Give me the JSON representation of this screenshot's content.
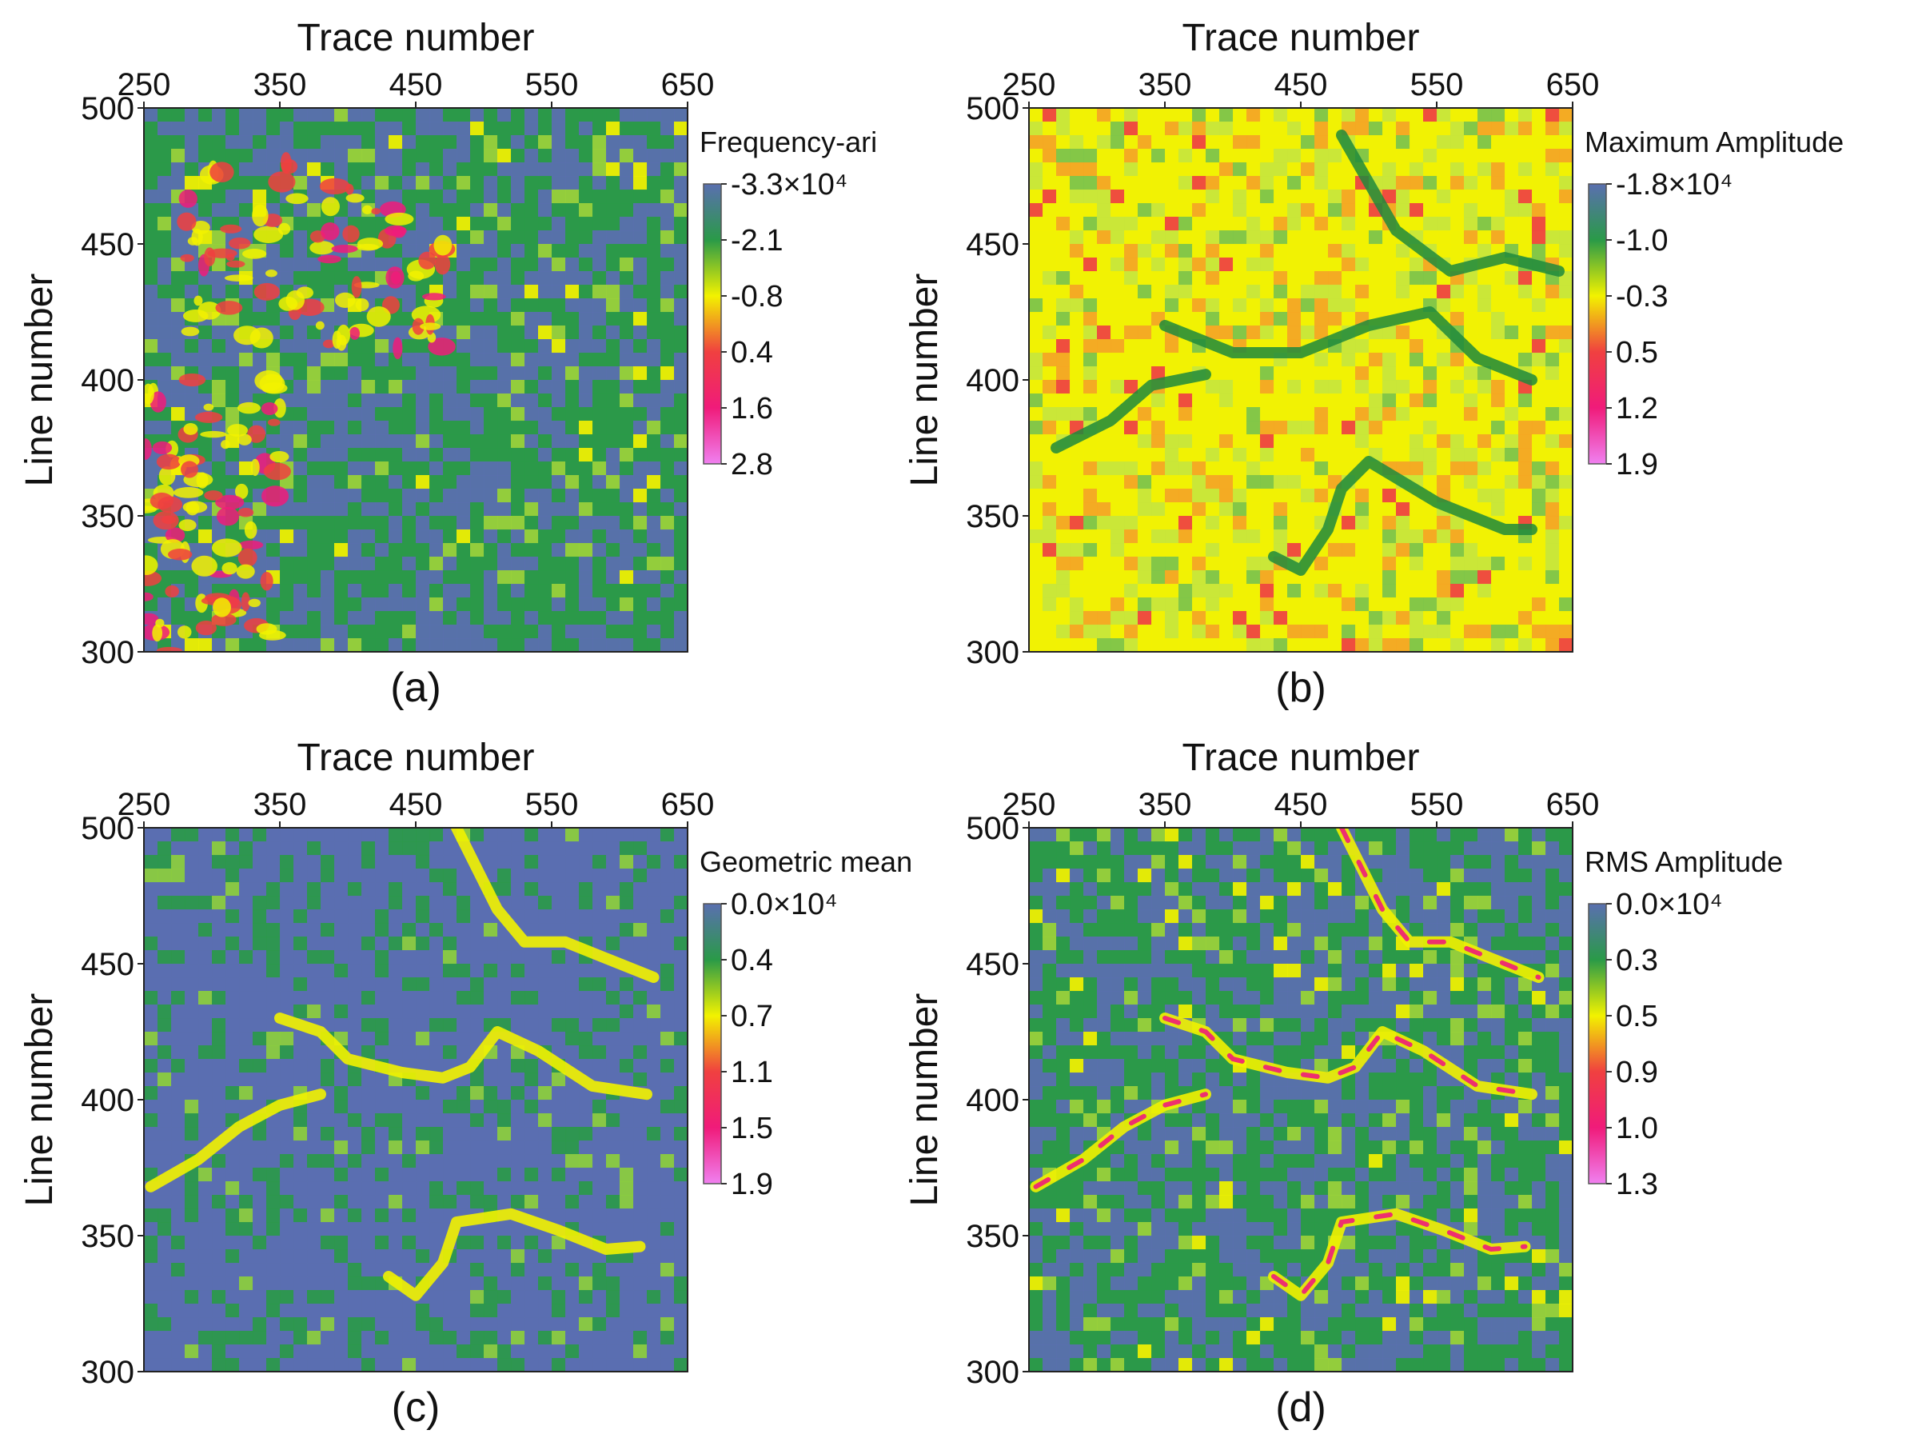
{
  "chart_data": [
    {
      "type": "heatmap",
      "panel_label": "(a)",
      "xlabel": "Trace number",
      "ylabel": "Line number",
      "x_ticks": [
        "250",
        "350",
        "450",
        "550",
        "650"
      ],
      "y_ticks": [
        "500",
        "450",
        "400",
        "350",
        "300"
      ],
      "xlim": [
        250,
        650
      ],
      "ylim": [
        300,
        500
      ],
      "colorbar": {
        "title": "Frequency-ari",
        "tick_labels": [
          "-3.3×10⁴",
          "-2.1",
          "-0.8",
          "0.4",
          "1.6",
          "2.8"
        ],
        "values": [
          -3.3,
          -2.1,
          -0.8,
          0.4,
          1.6,
          2.8
        ],
        "multiplier": "×10⁴"
      },
      "colors": [
        "#5a6fb0",
        "#2a9a48",
        "#f2f200",
        "#f04040",
        "#f01b7a",
        "#f080f0"
      ],
      "dominant_level": "blue-green",
      "features": [
        {
          "desc": "yellow-red patches",
          "trace": [
            250,
            350
          ],
          "line": [
            300,
            400
          ]
        },
        {
          "desc": "scattered red spots",
          "trace": [
            280,
            470
          ],
          "line": [
            410,
            480
          ]
        }
      ]
    },
    {
      "type": "heatmap",
      "panel_label": "(b)",
      "xlabel": "Trace number",
      "ylabel": "Line number",
      "x_ticks": [
        "250",
        "350",
        "450",
        "550",
        "650"
      ],
      "y_ticks": [
        "500",
        "450",
        "400",
        "350",
        "300"
      ],
      "xlim": [
        250,
        650
      ],
      "ylim": [
        300,
        500
      ],
      "colorbar": {
        "title": "Maximum Amplitude",
        "tick_labels": [
          "-1.8×10⁴",
          "-1.0",
          "-0.3",
          "0.5",
          "1.2",
          "1.9"
        ],
        "values": [
          -1.8,
          -1.0,
          -0.3,
          0.5,
          1.2,
          1.9
        ],
        "multiplier": "×10⁴"
      },
      "colors": [
        "#5a6fb0",
        "#2a9a48",
        "#f2f200",
        "#f04040",
        "#f01b7a",
        "#f080f0"
      ],
      "dominant_level": "yellow",
      "channels": [
        [
          [
            480,
            490
          ],
          [
            520,
            455
          ],
          [
            560,
            440
          ],
          [
            600,
            445
          ],
          [
            640,
            440
          ]
        ],
        [
          [
            350,
            420
          ],
          [
            400,
            410
          ],
          [
            450,
            410
          ],
          [
            500,
            420
          ],
          [
            545,
            425
          ],
          [
            580,
            408
          ],
          [
            620,
            400
          ]
        ],
        [
          [
            430,
            335
          ],
          [
            450,
            330
          ],
          [
            470,
            345
          ],
          [
            480,
            360
          ],
          [
            500,
            370
          ],
          [
            550,
            355
          ],
          [
            600,
            345
          ],
          [
            620,
            345
          ]
        ],
        [
          [
            270,
            375
          ],
          [
            310,
            385
          ],
          [
            340,
            398
          ],
          [
            380,
            402
          ]
        ]
      ]
    },
    {
      "type": "heatmap",
      "panel_label": "(c)",
      "xlabel": "Trace number",
      "ylabel": "Line number",
      "x_ticks": [
        "250",
        "350",
        "450",
        "550",
        "650"
      ],
      "y_ticks": [
        "500",
        "450",
        "400",
        "350",
        "300"
      ],
      "xlim": [
        250,
        650
      ],
      "ylim": [
        300,
        500
      ],
      "colorbar": {
        "title": "Geometric mean",
        "tick_labels": [
          "0.0×10⁴",
          "0.4",
          "0.7",
          "1.1",
          "1.5",
          "1.9"
        ],
        "values": [
          0.0,
          0.4,
          0.7,
          1.1,
          1.5,
          1.9
        ],
        "multiplier": "×10⁴"
      },
      "colors": [
        "#5a6fb0",
        "#2a9a48",
        "#f2f200",
        "#f04040",
        "#f01b7a",
        "#f080f0"
      ],
      "dominant_level": "blue",
      "channels": [
        [
          [
            480,
            500
          ],
          [
            510,
            470
          ],
          [
            530,
            458
          ],
          [
            560,
            458
          ],
          [
            590,
            452
          ],
          [
            625,
            445
          ]
        ],
        [
          [
            350,
            430
          ],
          [
            380,
            425
          ],
          [
            400,
            415
          ],
          [
            440,
            410
          ],
          [
            470,
            408
          ],
          [
            490,
            412
          ],
          [
            510,
            425
          ],
          [
            540,
            418
          ],
          [
            580,
            405
          ],
          [
            620,
            402
          ]
        ],
        [
          [
            430,
            335
          ],
          [
            450,
            328
          ],
          [
            470,
            340
          ],
          [
            480,
            355
          ],
          [
            520,
            358
          ],
          [
            555,
            352
          ],
          [
            590,
            345
          ],
          [
            615,
            346
          ]
        ],
        [
          [
            255,
            368
          ],
          [
            290,
            378
          ],
          [
            320,
            390
          ],
          [
            350,
            398
          ],
          [
            380,
            402
          ]
        ]
      ]
    },
    {
      "type": "heatmap",
      "panel_label": "(d)",
      "xlabel": "Trace number",
      "ylabel": "Line number",
      "x_ticks": [
        "250",
        "350",
        "450",
        "550",
        "650"
      ],
      "y_ticks": [
        "500",
        "450",
        "400",
        "350",
        "300"
      ],
      "xlim": [
        250,
        650
      ],
      "ylim": [
        300,
        500
      ],
      "colorbar": {
        "title": "RMS Amplitude",
        "tick_labels": [
          "0.0×10⁴",
          "0.3",
          "0.5",
          "0.9",
          "1.0",
          "1.3"
        ],
        "values": [
          0.0,
          0.3,
          0.5,
          0.9,
          1.0,
          1.3
        ],
        "multiplier": "×10⁴"
      },
      "colors": [
        "#5a6fb0",
        "#2a9a48",
        "#f2f200",
        "#f04040",
        "#f01b7a",
        "#f080f0"
      ],
      "dominant_level": "blue-green",
      "channels": [
        [
          [
            480,
            500
          ],
          [
            510,
            470
          ],
          [
            530,
            458
          ],
          [
            560,
            458
          ],
          [
            590,
            452
          ],
          [
            625,
            445
          ]
        ],
        [
          [
            350,
            430
          ],
          [
            380,
            425
          ],
          [
            400,
            415
          ],
          [
            440,
            410
          ],
          [
            470,
            408
          ],
          [
            490,
            412
          ],
          [
            510,
            425
          ],
          [
            540,
            418
          ],
          [
            580,
            405
          ],
          [
            620,
            402
          ]
        ],
        [
          [
            430,
            335
          ],
          [
            450,
            328
          ],
          [
            470,
            340
          ],
          [
            480,
            355
          ],
          [
            520,
            358
          ],
          [
            555,
            352
          ],
          [
            590,
            345
          ],
          [
            615,
            346
          ]
        ],
        [
          [
            255,
            368
          ],
          [
            290,
            378
          ],
          [
            320,
            390
          ],
          [
            350,
            398
          ],
          [
            380,
            402
          ]
        ]
      ]
    }
  ]
}
